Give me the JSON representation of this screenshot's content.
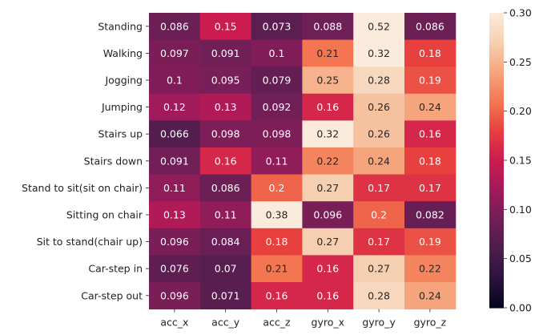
{
  "chart_data": {
    "type": "heatmap",
    "title": "",
    "xlabel": "",
    "ylabel": "",
    "columns": [
      "acc_x",
      "acc_y",
      "acc_z",
      "gyro_x",
      "gyro_y",
      "gyro_z"
    ],
    "rows": [
      "Standing",
      "Walking",
      "Jogging",
      "Jumping",
      "Stairs up",
      "Stairs down",
      "Stand to sit(sit on chair)",
      "Sitting on chair",
      "Sit to stand(chair up)",
      "Car-step in",
      "Car-step out"
    ],
    "values": [
      [
        0.086,
        0.15,
        0.073,
        0.088,
        0.52,
        0.086
      ],
      [
        0.097,
        0.091,
        0.1,
        0.21,
        0.32,
        0.18
      ],
      [
        0.1,
        0.095,
        0.079,
        0.25,
        0.28,
        0.19
      ],
      [
        0.12,
        0.13,
        0.092,
        0.16,
        0.26,
        0.24
      ],
      [
        0.066,
        0.098,
        0.098,
        0.32,
        0.26,
        0.16
      ],
      [
        0.091,
        0.16,
        0.11,
        0.22,
        0.24,
        0.18
      ],
      [
        0.11,
        0.086,
        0.2,
        0.27,
        0.17,
        0.17
      ],
      [
        0.13,
        0.11,
        0.38,
        0.096,
        0.2,
        0.082
      ],
      [
        0.096,
        0.084,
        0.18,
        0.27,
        0.17,
        0.19
      ],
      [
        0.076,
        0.07,
        0.21,
        0.16,
        0.27,
        0.22
      ],
      [
        0.096,
        0.071,
        0.16,
        0.16,
        0.28,
        0.24
      ]
    ],
    "value_labels": [
      [
        "0.086",
        "0.15",
        "0.073",
        "0.088",
        "0.52",
        "0.086"
      ],
      [
        "0.097",
        "0.091",
        "0.1",
        "0.21",
        "0.32",
        "0.18"
      ],
      [
        "0.1",
        "0.095",
        "0.079",
        "0.25",
        "0.28",
        "0.19"
      ],
      [
        "0.12",
        "0.13",
        "0.092",
        "0.16",
        "0.26",
        "0.24"
      ],
      [
        "0.066",
        "0.098",
        "0.098",
        "0.32",
        "0.26",
        "0.16"
      ],
      [
        "0.091",
        "0.16",
        "0.11",
        "0.22",
        "0.24",
        "0.18"
      ],
      [
        "0.11",
        "0.086",
        "0.2",
        "0.27",
        "0.17",
        "0.17"
      ],
      [
        "0.13",
        "0.11",
        "0.38",
        "0.096",
        "0.2",
        "0.082"
      ],
      [
        "0.096",
        "0.084",
        "0.18",
        "0.27",
        "0.17",
        "0.19"
      ],
      [
        "0.076",
        "0.07",
        "0.21",
        "0.16",
        "0.27",
        "0.22"
      ],
      [
        "0.096",
        "0.071",
        "0.16",
        "0.16",
        "0.28",
        "0.24"
      ]
    ],
    "colorbar": {
      "vmin": 0.0,
      "vmax": 0.3,
      "ticks": [
        0.0,
        0.05,
        0.1,
        0.15,
        0.2,
        0.25,
        0.3
      ],
      "tick_labels": [
        "0.00",
        "0.05",
        "0.10",
        "0.15",
        "0.20",
        "0.25",
        "0.30"
      ],
      "colormap": "rocket"
    }
  },
  "colors": {
    "colormap_stops": [
      "#03051a",
      "#2b1340",
      "#4c1d4b",
      "#701f57",
      "#a11a5b",
      "#cb1b4f",
      "#e83f3f",
      "#f37651",
      "#f6a47c",
      "#f6cfb0",
      "#faebdd"
    ],
    "text_light": "#ffffff",
    "text_dark": "#262626",
    "axis": "#222222"
  }
}
